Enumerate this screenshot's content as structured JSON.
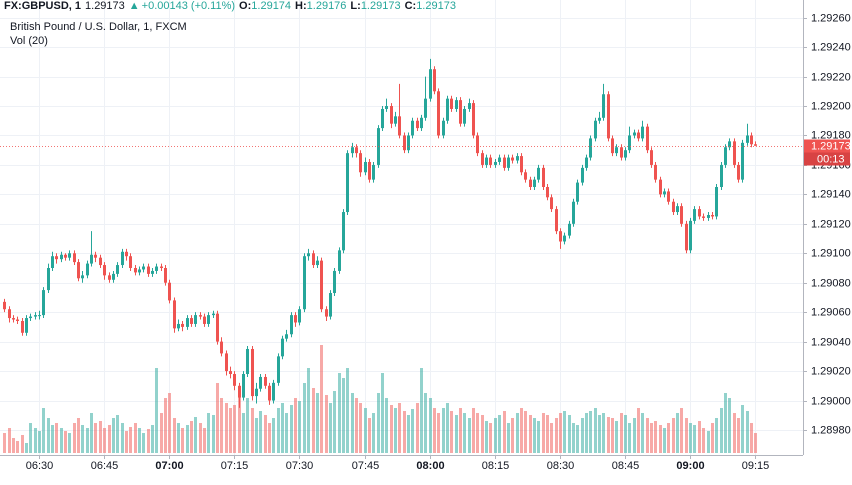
{
  "chart_data": {
    "type": "candlestick",
    "header": {
      "symbol": "FX:GBPUSD, 1",
      "last": "1.29173",
      "arrow": "▲",
      "change": "+0.00143 (+0.11%)",
      "ohlc": [
        {
          "label": "O:",
          "value": "1.29174"
        },
        {
          "label": "H:",
          "value": "1.29176"
        },
        {
          "label": "L:",
          "value": "1.29173"
        },
        {
          "label": "C:",
          "value": "1.29173"
        }
      ]
    },
    "title": "British Pound / U.S. Dollar, 1, FXCM",
    "volume_label": "Vol (20)",
    "up_color": "#26a69a",
    "down_color": "#ef5350",
    "last_price": 1.29173,
    "countdown": "00:13",
    "ylim": [
      1.28963,
      1.29272
    ],
    "yticks": [
      {
        "value": 1.2898,
        "label": "1.28980"
      },
      {
        "value": 1.29,
        "label": "1.29000"
      },
      {
        "value": 1.2902,
        "label": "1.29020"
      },
      {
        "value": 1.2904,
        "label": "1.29040"
      },
      {
        "value": 1.2906,
        "label": "1.29060"
      },
      {
        "value": 1.2908,
        "label": "1.29080"
      },
      {
        "value": 1.291,
        "label": "1.29100"
      },
      {
        "value": 1.2912,
        "label": "1.29120"
      },
      {
        "value": 1.2914,
        "label": "1.29140"
      },
      {
        "value": 1.2916,
        "label": "1.29160"
      },
      {
        "value": 1.2918,
        "label": "1.29180"
      },
      {
        "value": 1.292,
        "label": "1.29200"
      },
      {
        "value": 1.2922,
        "label": "1.29220"
      },
      {
        "value": 1.2924,
        "label": "1.29240"
      },
      {
        "value": 1.2926,
        "label": "1.29260"
      }
    ],
    "xlim": [
      -1,
      184
    ],
    "xticks": [
      {
        "value": 8,
        "label": "06:30"
      },
      {
        "value": 23,
        "label": "06:45"
      },
      {
        "value": 38,
        "label": "07:00",
        "bold": true
      },
      {
        "value": 53,
        "label": "07:15"
      },
      {
        "value": 68,
        "label": "07:30"
      },
      {
        "value": 83,
        "label": "07:45"
      },
      {
        "value": 98,
        "label": "08:00",
        "bold": true
      },
      {
        "value": 113,
        "label": "08:15"
      },
      {
        "value": 128,
        "label": "08:30"
      },
      {
        "value": 143,
        "label": "08:45"
      },
      {
        "value": 158,
        "label": "09:00",
        "bold": true
      },
      {
        "value": 173,
        "label": "09:15"
      }
    ],
    "candles": [
      [
        1.29067,
        1.29069,
        1.2906,
        1.29062
      ],
      [
        1.29062,
        1.29064,
        1.29053,
        1.29056
      ],
      [
        1.29056,
        1.29058,
        1.29053,
        1.29055
      ],
      [
        1.29055,
        1.29057,
        1.29052,
        1.29054
      ],
      [
        1.29054,
        1.29056,
        1.29044,
        1.29046
      ],
      [
        1.29046,
        1.29058,
        1.29044,
        1.29056
      ],
      [
        1.29056,
        1.29059,
        1.29054,
        1.29057
      ],
      [
        1.29057,
        1.2906,
        1.29055,
        1.29058
      ],
      [
        1.29058,
        1.29061,
        1.29055,
        1.29058
      ],
      [
        1.29058,
        1.29077,
        1.29056,
        1.29075
      ],
      [
        1.29075,
        1.29093,
        1.29073,
        1.2909
      ],
      [
        1.2909,
        1.29101,
        1.29088,
        1.29098
      ],
      [
        1.29098,
        1.291,
        1.29093,
        1.29096
      ],
      [
        1.29096,
        1.29101,
        1.29094,
        1.29099
      ],
      [
        1.29099,
        1.291,
        1.29095,
        1.29097
      ],
      [
        1.29097,
        1.29102,
        1.29095,
        1.291
      ],
      [
        1.291,
        1.29102,
        1.29092,
        1.29094
      ],
      [
        1.29094,
        1.29096,
        1.29081,
        1.29083
      ],
      [
        1.29083,
        1.29088,
        1.2908,
        1.29085
      ],
      [
        1.29085,
        1.29095,
        1.29083,
        1.29093
      ],
      [
        1.29093,
        1.29115,
        1.29091,
        1.29099
      ],
      [
        1.29099,
        1.29101,
        1.29094,
        1.29097
      ],
      [
        1.29097,
        1.29099,
        1.2909,
        1.29092
      ],
      [
        1.29092,
        1.29094,
        1.29082,
        1.29085
      ],
      [
        1.29085,
        1.29087,
        1.2908,
        1.29082
      ],
      [
        1.29082,
        1.29088,
        1.2908,
        1.29086
      ],
      [
        1.29086,
        1.29094,
        1.29084,
        1.29092
      ],
      [
        1.29092,
        1.29103,
        1.2909,
        1.29101
      ],
      [
        1.29101,
        1.29103,
        1.29095,
        1.29098
      ],
      [
        1.29098,
        1.291,
        1.29088,
        1.2909
      ],
      [
        1.2909,
        1.29092,
        1.29085,
        1.29087
      ],
      [
        1.29087,
        1.29091,
        1.29085,
        1.29089
      ],
      [
        1.29089,
        1.29093,
        1.29087,
        1.29091
      ],
      [
        1.29091,
        1.29093,
        1.29084,
        1.29086
      ],
      [
        1.29086,
        1.2909,
        1.29084,
        1.29088
      ],
      [
        1.29088,
        1.29093,
        1.29086,
        1.29091
      ],
      [
        1.29091,
        1.29093,
        1.29088,
        1.2909
      ],
      [
        1.2909,
        1.29092,
        1.29078,
        1.2908
      ],
      [
        1.2908,
        1.29082,
        1.29066,
        1.29068
      ],
      [
        1.29068,
        1.2907,
        1.29046,
        1.29049
      ],
      [
        1.29049,
        1.29055,
        1.29047,
        1.29052
      ],
      [
        1.29052,
        1.29054,
        1.29047,
        1.2905
      ],
      [
        1.2905,
        1.29058,
        1.29048,
        1.29056
      ],
      [
        1.29056,
        1.29058,
        1.2905,
        1.29052
      ],
      [
        1.29052,
        1.2906,
        1.2905,
        1.29058
      ],
      [
        1.29058,
        1.2906,
        1.29055,
        1.29057
      ],
      [
        1.29057,
        1.29059,
        1.2905,
        1.29052
      ],
      [
        1.29052,
        1.2906,
        1.2905,
        1.29058
      ],
      [
        1.29058,
        1.29061,
        1.29056,
        1.29059
      ],
      [
        1.29059,
        1.29061,
        1.29038,
        1.2904
      ],
      [
        1.2904,
        1.29043,
        1.2903,
        1.29032
      ],
      [
        1.29032,
        1.29034,
        1.29017,
        1.2902
      ],
      [
        1.2902,
        1.29023,
        1.29015,
        1.29018
      ],
      [
        1.29018,
        1.2902,
        1.29007,
        1.2901
      ],
      [
        1.2901,
        1.29012,
        1.28995,
        1.29002
      ],
      [
        1.29002,
        1.2902,
        1.29,
        1.29018
      ],
      [
        1.29018,
        1.29037,
        1.29016,
        1.29035
      ],
      [
        1.29035,
        1.29037,
        1.29,
        1.29003
      ],
      [
        1.29003,
        1.29012,
        1.28998,
        1.29008
      ],
      [
        1.29008,
        1.29018,
        1.29006,
        1.29016
      ],
      [
        1.29016,
        1.29018,
        1.29008,
        1.2901
      ],
      [
        1.2901,
        1.29012,
        1.28997,
        1.29
      ],
      [
        1.29,
        1.29014,
        1.28998,
        1.29012
      ],
      [
        1.29012,
        1.29032,
        1.2901,
        1.2903
      ],
      [
        1.2903,
        1.29044,
        1.29028,
        1.29042
      ],
      [
        1.29042,
        1.29048,
        1.2904,
        1.29045
      ],
      [
        1.29045,
        1.2906,
        1.29043,
        1.29058
      ],
      [
        1.29058,
        1.2906,
        1.2905,
        1.29053
      ],
      [
        1.29053,
        1.29064,
        1.29051,
        1.29062
      ],
      [
        1.29062,
        1.291,
        1.2906,
        1.29098
      ],
      [
        1.29098,
        1.29103,
        1.29095,
        1.291
      ],
      [
        1.291,
        1.29102,
        1.2909,
        1.29092
      ],
      [
        1.29092,
        1.29098,
        1.2909,
        1.29095
      ],
      [
        1.29095,
        1.29097,
        1.2906,
        1.29062
      ],
      [
        1.29062,
        1.29064,
        1.29054,
        1.29057
      ],
      [
        1.29057,
        1.29075,
        1.29055,
        1.29073
      ],
      [
        1.29073,
        1.2909,
        1.29071,
        1.29088
      ],
      [
        1.29088,
        1.29104,
        1.29086,
        1.29102
      ],
      [
        1.29102,
        1.2913,
        1.291,
        1.29128
      ],
      [
        1.29128,
        1.2917,
        1.29126,
        1.29168
      ],
      [
        1.29168,
        1.29175,
        1.29165,
        1.29172
      ],
      [
        1.29172,
        1.29174,
        1.29165,
        1.29168
      ],
      [
        1.29168,
        1.2917,
        1.29152,
        1.29155
      ],
      [
        1.29155,
        1.29165,
        1.29153,
        1.29162
      ],
      [
        1.29162,
        1.29164,
        1.29148,
        1.2915
      ],
      [
        1.2915,
        1.29162,
        1.29148,
        1.2916
      ],
      [
        1.2916,
        1.29187,
        1.29158,
        1.29185
      ],
      [
        1.29185,
        1.292,
        1.29183,
        1.29198
      ],
      [
        1.29198,
        1.29205,
        1.29196,
        1.292
      ],
      [
        1.292,
        1.29202,
        1.29185,
        1.29188
      ],
      [
        1.29188,
        1.29196,
        1.29186,
        1.29193
      ],
      [
        1.29193,
        1.29215,
        1.29178,
        1.2918
      ],
      [
        1.2918,
        1.29182,
        1.29168,
        1.2917
      ],
      [
        1.2917,
        1.29182,
        1.29168,
        1.2918
      ],
      [
        1.2918,
        1.29192,
        1.29178,
        1.2919
      ],
      [
        1.2919,
        1.29192,
        1.29183,
        1.29185
      ],
      [
        1.29185,
        1.29194,
        1.29183,
        1.29192
      ],
      [
        1.29192,
        1.2922,
        1.2919,
        1.29205
      ],
      [
        1.29205,
        1.29232,
        1.29203,
        1.29225
      ],
      [
        1.29225,
        1.29227,
        1.29208,
        1.2921
      ],
      [
        1.2921,
        1.29212,
        1.29178,
        1.2918
      ],
      [
        1.2918,
        1.29192,
        1.29178,
        1.2919
      ],
      [
        1.2919,
        1.29207,
        1.29188,
        1.29205
      ],
      [
        1.29205,
        1.29207,
        1.29196,
        1.29198
      ],
      [
        1.29198,
        1.29206,
        1.29196,
        1.29204
      ],
      [
        1.29204,
        1.29206,
        1.29186,
        1.29188
      ],
      [
        1.29188,
        1.292,
        1.29186,
        1.29198
      ],
      [
        1.29198,
        1.29205,
        1.29196,
        1.29202
      ],
      [
        1.29202,
        1.29204,
        1.29178,
        1.2918
      ],
      [
        1.2918,
        1.29182,
        1.29166,
        1.29168
      ],
      [
        1.29168,
        1.2917,
        1.29158,
        1.2916
      ],
      [
        1.2916,
        1.29167,
        1.29158,
        1.29165
      ],
      [
        1.29165,
        1.29167,
        1.29158,
        1.2916
      ],
      [
        1.2916,
        1.29164,
        1.29158,
        1.29162
      ],
      [
        1.29162,
        1.29167,
        1.2916,
        1.29165
      ],
      [
        1.29165,
        1.29167,
        1.29156,
        1.29158
      ],
      [
        1.29158,
        1.29167,
        1.29156,
        1.29165
      ],
      [
        1.29165,
        1.29167,
        1.29161,
        1.29163
      ],
      [
        1.29163,
        1.29168,
        1.29161,
        1.29166
      ],
      [
        1.29166,
        1.29168,
        1.29153,
        1.29155
      ],
      [
        1.29155,
        1.29157,
        1.29148,
        1.2915
      ],
      [
        1.2915,
        1.29152,
        1.29143,
        1.29145
      ],
      [
        1.29145,
        1.29152,
        1.29143,
        1.2915
      ],
      [
        1.2915,
        1.2916,
        1.29148,
        1.29158
      ],
      [
        1.29158,
        1.2916,
        1.29143,
        1.29145
      ],
      [
        1.29145,
        1.29147,
        1.29136,
        1.29138
      ],
      [
        1.29138,
        1.2914,
        1.29128,
        1.2913
      ],
      [
        1.2913,
        1.29132,
        1.29113,
        1.29115
      ],
      [
        1.29115,
        1.29117,
        1.29103,
        1.29108
      ],
      [
        1.29108,
        1.29114,
        1.29106,
        1.29112
      ],
      [
        1.29112,
        1.29122,
        1.2911,
        1.2912
      ],
      [
        1.2912,
        1.29137,
        1.29118,
        1.29135
      ],
      [
        1.29135,
        1.2915,
        1.29133,
        1.29148
      ],
      [
        1.29148,
        1.2916,
        1.29146,
        1.29158
      ],
      [
        1.29158,
        1.29167,
        1.29156,
        1.29165
      ],
      [
        1.29165,
        1.2918,
        1.29163,
        1.29178
      ],
      [
        1.29178,
        1.29192,
        1.29176,
        1.2919
      ],
      [
        1.2919,
        1.29196,
        1.29188,
        1.29192
      ],
      [
        1.29192,
        1.29215,
        1.2919,
        1.29208
      ],
      [
        1.29208,
        1.2921,
        1.29176,
        1.29178
      ],
      [
        1.29178,
        1.2918,
        1.29166,
        1.29168
      ],
      [
        1.29168,
        1.29174,
        1.29166,
        1.29172
      ],
      [
        1.29172,
        1.29174,
        1.29163,
        1.29165
      ],
      [
        1.29165,
        1.29172,
        1.29163,
        1.2917
      ],
      [
        1.2917,
        1.29186,
        1.29168,
        1.2918
      ],
      [
        1.2918,
        1.29184,
        1.29178,
        1.29182
      ],
      [
        1.29182,
        1.29184,
        1.29176,
        1.29178
      ],
      [
        1.29178,
        1.2919,
        1.29176,
        1.29186
      ],
      [
        1.29186,
        1.29188,
        1.29168,
        1.2917
      ],
      [
        1.2917,
        1.29172,
        1.29158,
        1.2916
      ],
      [
        1.2916,
        1.29162,
        1.29148,
        1.2915
      ],
      [
        1.2915,
        1.29152,
        1.29138,
        1.2914
      ],
      [
        1.2914,
        1.29144,
        1.29138,
        1.29142
      ],
      [
        1.29142,
        1.29144,
        1.29133,
        1.29135
      ],
      [
        1.29135,
        1.29137,
        1.29126,
        1.29128
      ],
      [
        1.29128,
        1.29134,
        1.29126,
        1.29132
      ],
      [
        1.29132,
        1.29134,
        1.29118,
        1.2912
      ],
      [
        1.2912,
        1.29122,
        1.291,
        1.29102
      ],
      [
        1.29102,
        1.29124,
        1.291,
        1.29122
      ],
      [
        1.29122,
        1.29132,
        1.2912,
        1.2913
      ],
      [
        1.2913,
        1.29132,
        1.29123,
        1.29125
      ],
      [
        1.29125,
        1.29127,
        1.29122,
        1.29124
      ],
      [
        1.29124,
        1.29128,
        1.29122,
        1.29126
      ],
      [
        1.29126,
        1.29128,
        1.29123,
        1.29125
      ],
      [
        1.29125,
        1.29147,
        1.29123,
        1.29145
      ],
      [
        1.29145,
        1.29162,
        1.29143,
        1.2916
      ],
      [
        1.2916,
        1.29174,
        1.29158,
        1.29172
      ],
      [
        1.29172,
        1.29178,
        1.2917,
        1.29176
      ],
      [
        1.29176,
        1.29178,
        1.29158,
        1.2916
      ],
      [
        1.2916,
        1.29162,
        1.29148,
        1.2915
      ],
      [
        1.2915,
        1.29177,
        1.29148,
        1.29175
      ],
      [
        1.29175,
        1.29188,
        1.29173,
        1.2918
      ],
      [
        1.2918,
        1.29182,
        1.29172,
        1.29174
      ],
      [
        1.29174,
        1.29176,
        1.29173,
        1.29173
      ]
    ],
    "volumes": [
      20,
      25,
      15,
      12,
      18,
      10,
      30,
      25,
      22,
      45,
      35,
      28,
      30,
      25,
      22,
      20,
      30,
      35,
      28,
      25,
      40,
      30,
      32,
      25,
      28,
      35,
      38,
      30,
      22,
      26,
      30,
      25,
      20,
      24,
      28,
      85,
      40,
      55,
      60,
      35,
      30,
      25,
      28,
      32,
      36,
      30,
      25,
      40,
      38,
      70,
      55,
      50,
      45,
      48,
      60,
      40,
      55,
      45,
      35,
      42,
      38,
      30,
      35,
      45,
      50,
      40,
      48,
      55,
      52,
      70,
      85,
      65,
      60,
      108,
      58,
      50,
      62,
      80,
      75,
      85,
      60,
      55,
      50,
      45,
      35,
      40,
      60,
      80,
      55,
      48,
      45,
      50,
      42,
      38,
      44,
      50,
      85,
      60,
      55,
      45,
      40,
      45,
      50,
      42,
      38,
      45,
      40,
      35,
      45,
      40,
      38,
      32,
      30,
      35,
      38,
      42,
      30,
      35,
      40,
      45,
      42,
      38,
      35,
      32,
      40,
      38,
      30,
      35,
      40,
      42,
      38,
      30,
      28,
      35,
      40,
      42,
      45,
      38,
      40,
      36,
      35,
      32,
      40,
      38,
      30,
      35,
      45,
      40,
      35,
      30,
      32,
      28,
      25,
      30,
      35,
      40,
      45,
      35,
      30,
      28,
      32,
      25,
      22,
      30,
      35,
      45,
      60,
      55,
      40,
      35,
      48,
      42,
      30,
      20
    ]
  }
}
